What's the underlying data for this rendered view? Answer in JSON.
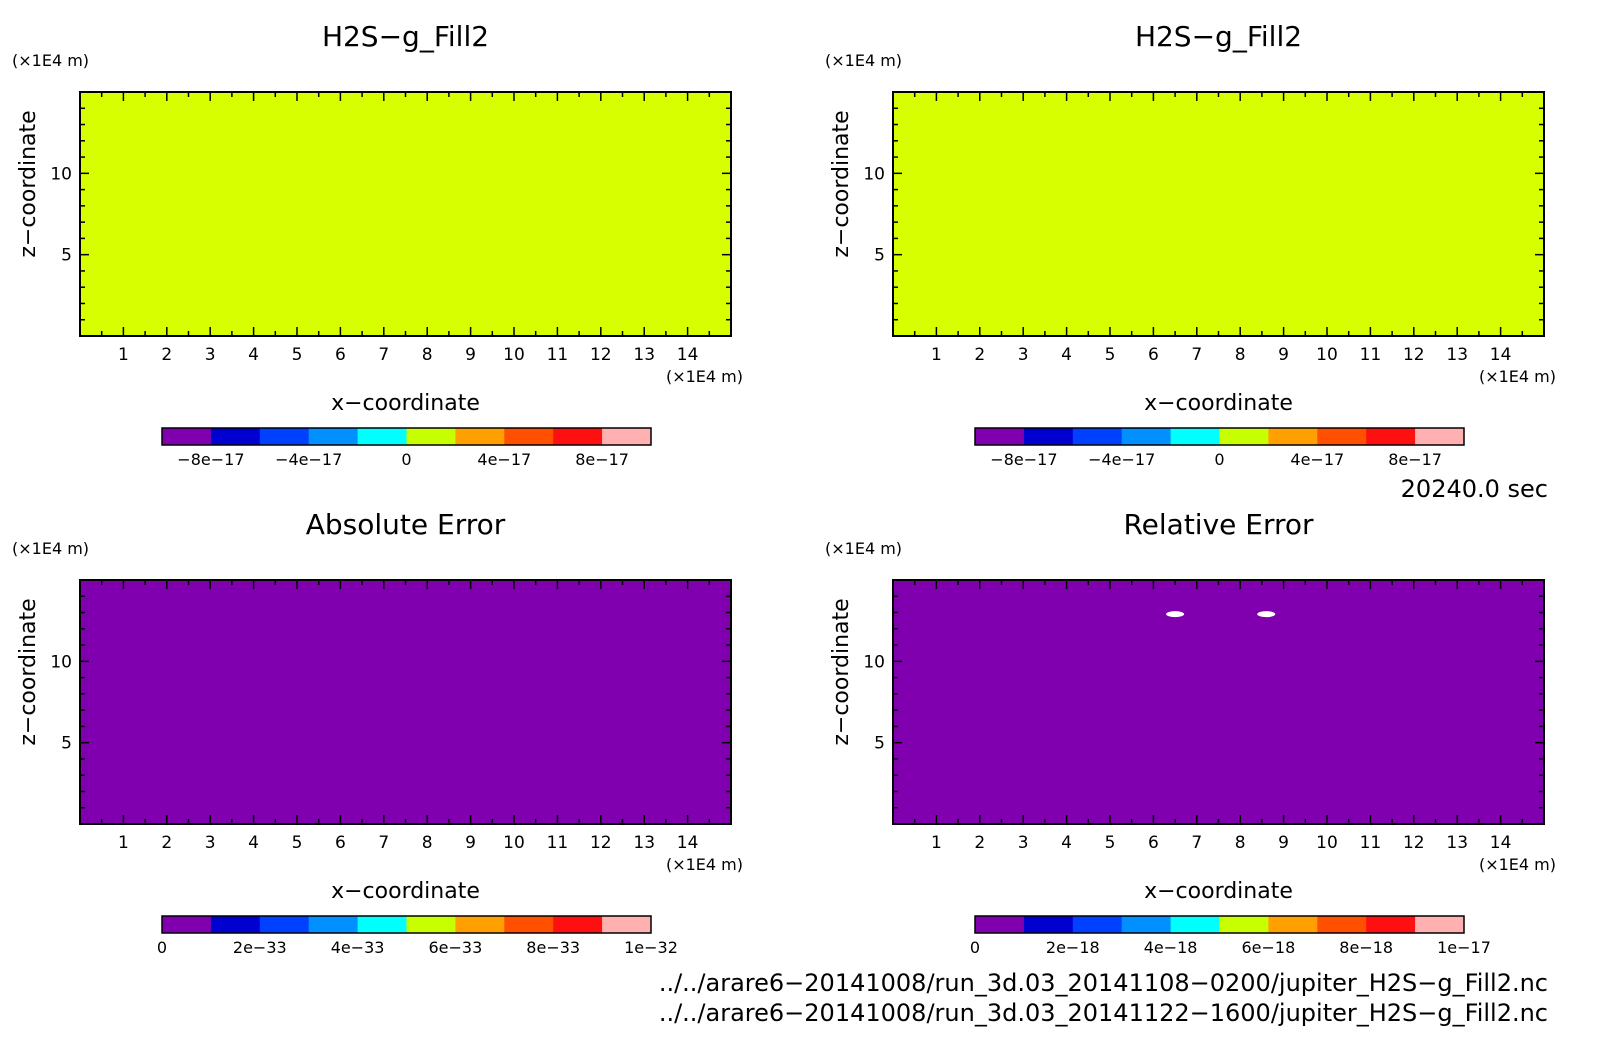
{
  "chart_data": [
    {
      "type": "heatmap",
      "title": "H2S−g_Fill2",
      "xlabel": "x−coordinate",
      "ylabel": "z−coordinate",
      "xunit": "(×1E4 m)",
      "yunit": "(×1E4 m)",
      "xlim": [
        0,
        15
      ],
      "ylim": [
        0,
        15
      ],
      "xticks": [
        "1",
        "2",
        "3",
        "4",
        "5",
        "6",
        "7",
        "8",
        "9",
        "10",
        "11",
        "12",
        "13",
        "14"
      ],
      "yticks": [
        "5",
        "10"
      ],
      "fill_color": "#d7ff00",
      "field_value": 0,
      "colorbar": {
        "colors": [
          "#8000b0",
          "#0000d0",
          "#0040ff",
          "#0090ff",
          "#00ffff",
          "#c8ff00",
          "#ffa000",
          "#ff5000",
          "#ff1010",
          "#ffb0b0"
        ],
        "labels": [
          "−8e−17",
          "−4e−17",
          "0",
          "4e−17",
          "8e−17"
        ],
        "label_positions": [
          1,
          3,
          5,
          7,
          9
        ]
      }
    },
    {
      "type": "heatmap",
      "title": "H2S−g_Fill2",
      "xlabel": "x−coordinate",
      "ylabel": "z−coordinate",
      "xunit": "(×1E4 m)",
      "yunit": "(×1E4 m)",
      "xlim": [
        0,
        15
      ],
      "ylim": [
        0,
        15
      ],
      "xticks": [
        "1",
        "2",
        "3",
        "4",
        "5",
        "6",
        "7",
        "8",
        "9",
        "10",
        "11",
        "12",
        "13",
        "14"
      ],
      "yticks": [
        "5",
        "10"
      ],
      "fill_color": "#d7ff00",
      "field_value": 0,
      "colorbar": {
        "colors": [
          "#8000b0",
          "#0000d0",
          "#0040ff",
          "#0090ff",
          "#00ffff",
          "#c8ff00",
          "#ffa000",
          "#ff5000",
          "#ff1010",
          "#ffb0b0"
        ],
        "labels": [
          "−8e−17",
          "−4e−17",
          "0",
          "4e−17",
          "8e−17"
        ],
        "label_positions": [
          1,
          3,
          5,
          7,
          9
        ]
      }
    },
    {
      "type": "heatmap",
      "title": "Absolute Error",
      "xlabel": "x−coordinate",
      "ylabel": "z−coordinate",
      "xunit": "(×1E4 m)",
      "yunit": "(×1E4 m)",
      "xlim": [
        0,
        15
      ],
      "ylim": [
        0,
        15
      ],
      "xticks": [
        "1",
        "2",
        "3",
        "4",
        "5",
        "6",
        "7",
        "8",
        "9",
        "10",
        "11",
        "12",
        "13",
        "14"
      ],
      "yticks": [
        "5",
        "10"
      ],
      "fill_color": "#8000b0",
      "field_value": 0,
      "colorbar": {
        "colors": [
          "#8000b0",
          "#0000d0",
          "#0040ff",
          "#0090ff",
          "#00ffff",
          "#c8ff00",
          "#ffa000",
          "#ff5000",
          "#ff1010",
          "#ffb0b0"
        ],
        "labels": [
          "0",
          "2e−33",
          "4e−33",
          "6e−33",
          "8e−33",
          "1e−32"
        ],
        "label_positions": [
          0,
          2,
          4,
          6,
          8,
          10
        ]
      }
    },
    {
      "type": "heatmap",
      "title": "Relative Error",
      "xlabel": "x−coordinate",
      "ylabel": "z−coordinate",
      "xunit": "(×1E4 m)",
      "yunit": "(×1E4 m)",
      "xlim": [
        0,
        15
      ],
      "ylim": [
        0,
        15
      ],
      "xticks": [
        "1",
        "2",
        "3",
        "4",
        "5",
        "6",
        "7",
        "8",
        "9",
        "10",
        "11",
        "12",
        "13",
        "14"
      ],
      "yticks": [
        "5",
        "10"
      ],
      "fill_color": "#8000b0",
      "field_value": 0,
      "blank_spots": [
        {
          "x": 6.5,
          "z": 12.9
        },
        {
          "x": 8.6,
          "z": 12.9
        }
      ],
      "colorbar": {
        "colors": [
          "#8000b0",
          "#0000d0",
          "#0040ff",
          "#0090ff",
          "#00ffff",
          "#c8ff00",
          "#ffa000",
          "#ff5000",
          "#ff1010",
          "#ffb0b0"
        ],
        "labels": [
          "0",
          "2e−18",
          "4e−18",
          "6e−18",
          "8e−18",
          "1e−17"
        ],
        "label_positions": [
          0,
          2,
          4,
          6,
          8,
          10
        ]
      }
    }
  ],
  "time_label": "20240.0 sec",
  "files": [
    "../../arare6−20141008/run_3d.03_20141108−0200/jupiter_H2S−g_Fill2.nc",
    "../../arare6−20141008/run_3d.03_20141122−1600/jupiter_H2S−g_Fill2.nc"
  ]
}
